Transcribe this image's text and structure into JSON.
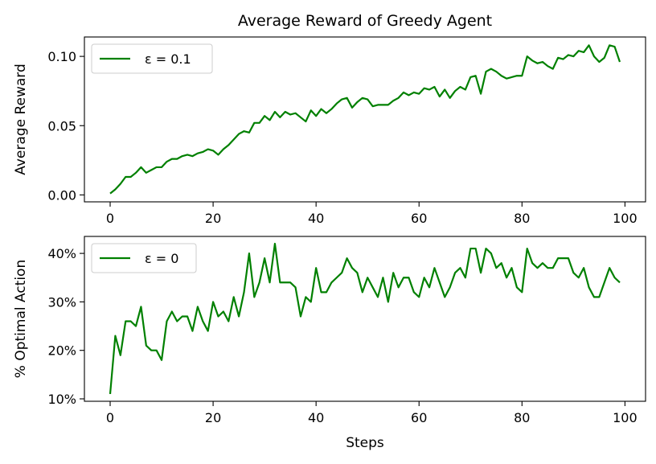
{
  "figure": {
    "title": "Average Reward of Greedy Agent"
  },
  "chart_data": [
    {
      "type": "line",
      "title": "Average Reward of Greedy Agent",
      "xlabel": "",
      "ylabel": "Average Reward",
      "xlim": [
        -5,
        104
      ],
      "ylim": [
        -0.005,
        0.114
      ],
      "xticks": [
        0,
        20,
        40,
        60,
        80,
        100
      ],
      "xtick_labels": [
        "0",
        "20",
        "40",
        "60",
        "80",
        "100"
      ],
      "yticks": [
        0.0,
        0.05,
        0.1
      ],
      "ytick_labels": [
        "0.00",
        "0.05",
        "0.10"
      ],
      "grid": false,
      "legend_position": "upper-left",
      "color": "#008000",
      "series": [
        {
          "name": "ε = 0.1",
          "x_start": 0,
          "x_step": 1,
          "values": [
            0.001,
            0.004,
            0.008,
            0.013,
            0.013,
            0.016,
            0.02,
            0.016,
            0.018,
            0.02,
            0.02,
            0.024,
            0.026,
            0.026,
            0.028,
            0.029,
            0.028,
            0.03,
            0.031,
            0.033,
            0.032,
            0.029,
            0.033,
            0.036,
            0.04,
            0.044,
            0.046,
            0.045,
            0.052,
            0.052,
            0.057,
            0.054,
            0.06,
            0.056,
            0.06,
            0.058,
            0.059,
            0.056,
            0.053,
            0.061,
            0.057,
            0.062,
            0.059,
            0.062,
            0.066,
            0.069,
            0.07,
            0.063,
            0.067,
            0.07,
            0.069,
            0.064,
            0.065,
            0.065,
            0.065,
            0.068,
            0.07,
            0.074,
            0.072,
            0.074,
            0.073,
            0.077,
            0.076,
            0.078,
            0.071,
            0.076,
            0.07,
            0.075,
            0.078,
            0.076,
            0.085,
            0.086,
            0.073,
            0.089,
            0.091,
            0.089,
            0.086,
            0.084,
            0.085,
            0.086,
            0.086,
            0.1,
            0.097,
            0.095,
            0.096,
            0.093,
            0.091,
            0.099,
            0.098,
            0.101,
            0.1,
            0.104,
            0.103,
            0.108,
            0.1,
            0.096,
            0.099,
            0.108,
            0.107,
            0.096
          ]
        }
      ]
    },
    {
      "type": "line",
      "title": "",
      "xlabel": "Steps",
      "ylabel": "% Optimal Action",
      "xlim": [
        -5,
        104
      ],
      "ylim": [
        9.5,
        43.5
      ],
      "xticks": [
        0,
        20,
        40,
        60,
        80,
        100
      ],
      "xtick_labels": [
        "0",
        "20",
        "40",
        "60",
        "80",
        "100"
      ],
      "yticks": [
        10,
        20,
        30,
        40
      ],
      "ytick_labels": [
        "10%",
        "20%",
        "30%",
        "40%"
      ],
      "grid": false,
      "legend_position": "upper-left",
      "color": "#008000",
      "series": [
        {
          "name": "ε = 0",
          "x_start": 0,
          "x_step": 1,
          "values": [
            11,
            23,
            19,
            26,
            26,
            25,
            29,
            21,
            20,
            20,
            18,
            26,
            28,
            26,
            27,
            27,
            24,
            29,
            26,
            24,
            30,
            27,
            28,
            26,
            31,
            27,
            32,
            40,
            31,
            34,
            39,
            34,
            42,
            34,
            34,
            34,
            33,
            27,
            31,
            30,
            37,
            32,
            32,
            34,
            35,
            36,
            39,
            37,
            36,
            32,
            35,
            33,
            31,
            35,
            30,
            36,
            33,
            35,
            35,
            32,
            31,
            35,
            33,
            37,
            34,
            31,
            33,
            36,
            37,
            35,
            41,
            41,
            36,
            41,
            40,
            37,
            38,
            35,
            37,
            33,
            32,
            41,
            38,
            37,
            38,
            37,
            37,
            39,
            39,
            39,
            36,
            35,
            37,
            33,
            31,
            31,
            34,
            37,
            35,
            34
          ]
        }
      ]
    }
  ]
}
